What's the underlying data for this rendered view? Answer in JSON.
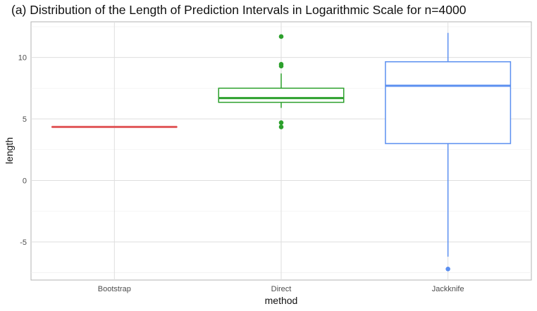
{
  "chart_data": {
    "type": "boxplot",
    "title": "(a) Distribution of the Length of Prediction Intervals in Logarithmic Scale for n=4000",
    "xlabel": "method",
    "ylabel": "length",
    "categories": [
      "Bootstrap",
      "Direct",
      "Jackknife"
    ],
    "ylim": [
      -8.1,
      12.9
    ],
    "yticks": [
      -5,
      0,
      5,
      10
    ],
    "grid": true,
    "legend": "none",
    "series": [
      {
        "category": "Bootstrap",
        "color": "#E15759",
        "whisker_low": 4.35,
        "q1": 4.35,
        "median": 4.35,
        "q3": 4.35,
        "whisker_high": 4.35,
        "outliers": []
      },
      {
        "category": "Direct",
        "color": "#2CA02C",
        "whisker_low": 5.9,
        "q1": 6.35,
        "median": 6.7,
        "q3": 7.5,
        "whisker_high": 8.7,
        "outliers": [
          11.7,
          9.45,
          9.3,
          4.7,
          4.35
        ]
      },
      {
        "category": "Jackknife",
        "color": "#5B8FF0",
        "whisker_low": -6.2,
        "q1": 3.0,
        "median": 7.7,
        "q3": 9.65,
        "whisker_high": 12.0,
        "outliers": [
          -7.2
        ]
      }
    ]
  }
}
